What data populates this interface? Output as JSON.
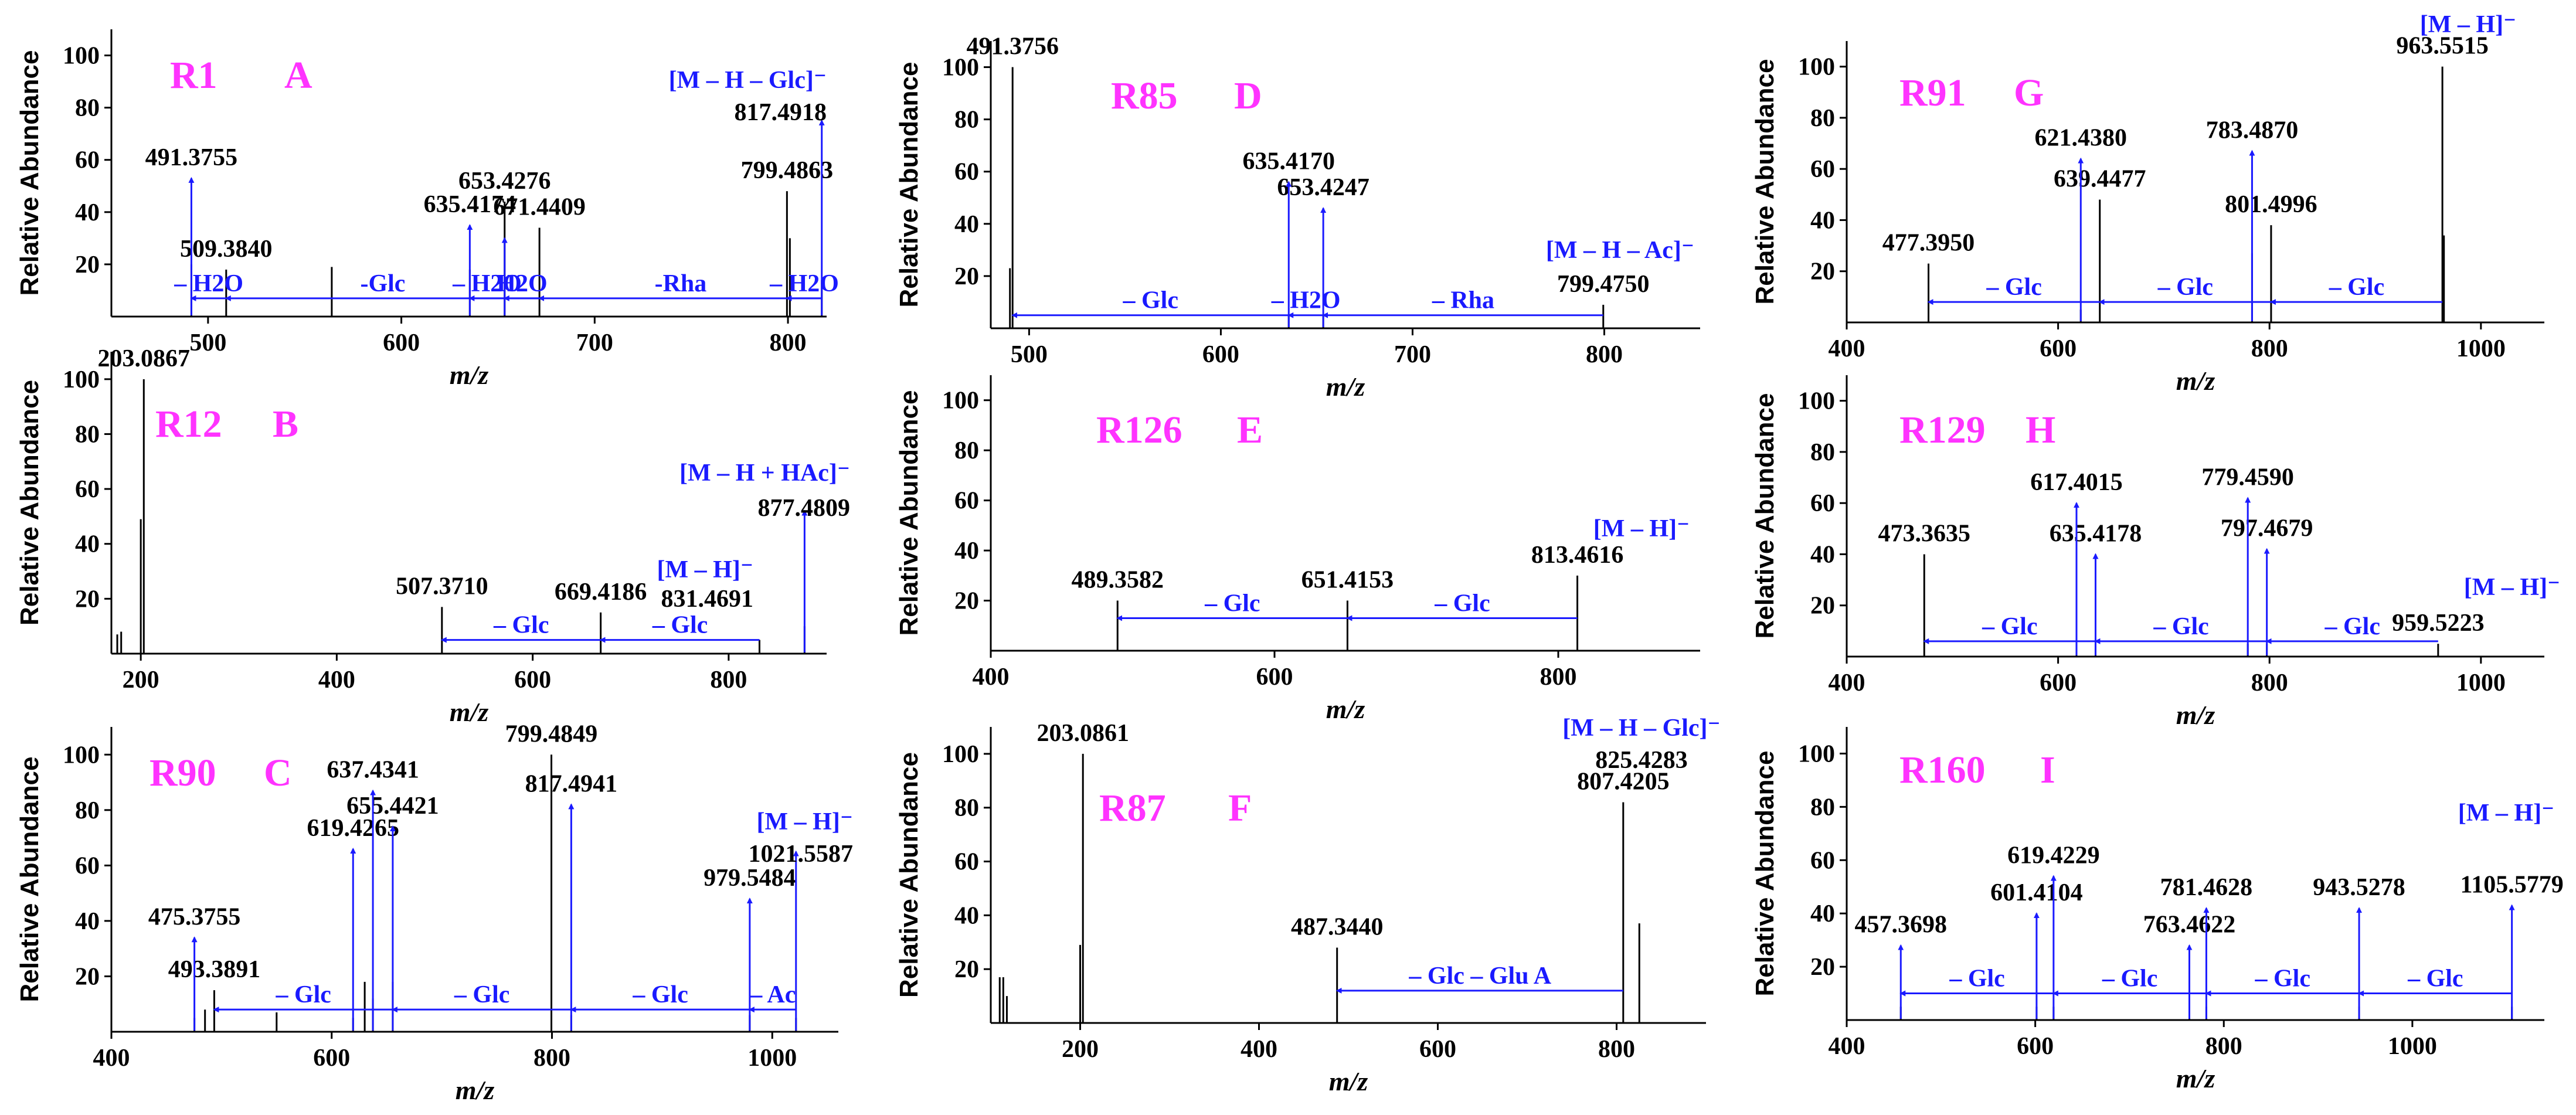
{
  "colors": {
    "peak": "#000000",
    "annotation": "#1a1aff",
    "panel_id": "#ff33ff",
    "axis": "#000000"
  },
  "chart_data": [
    {
      "panel": "A",
      "compound": "R1",
      "type": "bar",
      "xlabel": "m/z",
      "ylabel": "Relative Abundance",
      "xlim": [
        450,
        820
      ],
      "ylim": [
        0,
        110
      ],
      "xticks": [
        500,
        600,
        700,
        800
      ],
      "yticks": [
        20,
        40,
        60,
        80,
        100
      ],
      "peaks": [
        {
          "mz": 491.3755,
          "rel": 20,
          "label": "491.3755"
        },
        {
          "mz": 509.384,
          "rel": 18,
          "label": "509.3840"
        },
        {
          "mz": 564,
          "rel": 19
        },
        {
          "mz": 635.4174,
          "rel": 18,
          "label": "635.4174"
        },
        {
          "mz": 653.4276,
          "rel": 44,
          "label": "653.4276"
        },
        {
          "mz": 671.4409,
          "rel": 34,
          "label": "671.4409"
        },
        {
          "mz": 799.4863,
          "rel": 48,
          "label": "799.4863"
        },
        {
          "mz": 801,
          "rel": 30
        },
        {
          "mz": 817.4918,
          "rel": 14
        }
      ],
      "arrows": [
        {
          "mz": 491.3755,
          "to": 53
        },
        {
          "mz": 635.4174,
          "to": 35
        },
        {
          "mz": 653.4276,
          "to": 30
        },
        {
          "mz": 817.4918,
          "to": 75
        }
      ],
      "losses": [
        {
          "from": 817.4918,
          "to": 671.4409,
          "label": "-Rha"
        },
        {
          "from": 671.4409,
          "to": 509.384,
          "label": "-Glc"
        },
        {
          "from": 671.4409,
          "to": 653.4276,
          "label": "H2O"
        },
        {
          "from": 653.4276,
          "to": 635.4174,
          "label": "– H2O"
        },
        {
          "from": 509.384,
          "to": 491.3755,
          "label": "– H2O"
        },
        {
          "from": 817.4918,
          "to": 799.4863,
          "label": "– H2O"
        }
      ],
      "text_annotations": [
        {
          "text": "[M – H – Glc]⁻",
          "color": "blue"
        },
        {
          "text": "817.4918",
          "color": "black"
        }
      ]
    },
    {
      "panel": "B",
      "compound": "R12",
      "type": "bar",
      "xlabel": "m/z",
      "ylabel": "Relative Abundance",
      "xlim": [
        170,
        900
      ],
      "ylim": [
        0,
        110
      ],
      "xticks": [
        200,
        400,
        600,
        800
      ],
      "yticks": [
        20,
        40,
        60,
        80,
        100
      ],
      "peaks": [
        {
          "mz": 176,
          "rel": 7
        },
        {
          "mz": 180,
          "rel": 8
        },
        {
          "mz": 200,
          "rel": 49
        },
        {
          "mz": 203.0867,
          "rel": 100,
          "label": "203.0867"
        },
        {
          "mz": 507.371,
          "rel": 17,
          "label": "507.3710"
        },
        {
          "mz": 669.4186,
          "rel": 15,
          "label": "669.4186"
        },
        {
          "mz": 831.4691,
          "rel": 5
        },
        {
          "mz": 877.4809,
          "rel": 10
        }
      ],
      "arrows": [
        {
          "mz": 877.4809,
          "to": 52
        }
      ],
      "losses": [
        {
          "from": 831.4691,
          "to": 669.4186,
          "label": "– Glc"
        },
        {
          "from": 669.4186,
          "to": 507.371,
          "label": "– Glc"
        }
      ],
      "text_annotations": [
        {
          "text": "[M – H + HAc]⁻",
          "color": "blue"
        },
        {
          "text": "877.4809",
          "color": "black"
        },
        {
          "text": "[M – H]⁻",
          "color": "blue"
        },
        {
          "text": "831.4691",
          "color": "black"
        }
      ]
    },
    {
      "panel": "C",
      "compound": "R90",
      "type": "bar",
      "xlabel": "m/z",
      "ylabel": "Relative Abundance",
      "xlim": [
        400,
        1060
      ],
      "ylim": [
        0,
        110
      ],
      "xticks": [
        400,
        600,
        800,
        1000
      ],
      "yticks": [
        20,
        40,
        60,
        80,
        100
      ],
      "peaks": [
        {
          "mz": 475.3755,
          "rel": 5,
          "label": "475.3755"
        },
        {
          "mz": 485,
          "rel": 8
        },
        {
          "mz": 493.3891,
          "rel": 15,
          "label": "493.3891"
        },
        {
          "mz": 550,
          "rel": 7
        },
        {
          "mz": 619.4265,
          "rel": 5,
          "label": "619.4265"
        },
        {
          "mz": 630,
          "rel": 18
        },
        {
          "mz": 637.4341,
          "rel": 12,
          "label": "637.4341"
        },
        {
          "mz": 655.4421,
          "rel": 18,
          "label": "655.4421"
        },
        {
          "mz": 799.4849,
          "rel": 100,
          "label": "799.4849"
        },
        {
          "mz": 817.4941,
          "rel": 6,
          "label": "817.4941"
        },
        {
          "mz": 979.5484,
          "rel": 6,
          "label": "979.5484"
        },
        {
          "mz": 1021.5587,
          "rel": 5
        }
      ],
      "arrows": [
        {
          "mz": 475.3755,
          "to": 34
        },
        {
          "mz": 619.4265,
          "to": 66
        },
        {
          "mz": 637.4341,
          "to": 87
        },
        {
          "mz": 655.4421,
          "to": 74
        },
        {
          "mz": 817.4941,
          "to": 82
        },
        {
          "mz": 979.5484,
          "to": 48
        },
        {
          "mz": 1021.5587,
          "to": 65
        }
      ],
      "losses": [
        {
          "from": 1021.5587,
          "to": 979.5484,
          "label": "– Ac"
        },
        {
          "from": 979.5484,
          "to": 817.4941,
          "label": "– Glc"
        },
        {
          "from": 817.4941,
          "to": 655.4421,
          "label": "– Glc"
        },
        {
          "from": 655.4421,
          "to": 493.3891,
          "label": "– Glc"
        }
      ],
      "text_annotations": [
        {
          "text": "[M – H]⁻",
          "color": "blue"
        },
        {
          "text": "1021.5587",
          "color": "black"
        }
      ]
    },
    {
      "panel": "D",
      "compound": "R85",
      "type": "bar",
      "xlabel": "m/z",
      "ylabel": "Relative Abundance",
      "xlim": [
        480,
        850
      ],
      "ylim": [
        0,
        110
      ],
      "xticks": [
        500,
        600,
        700,
        800
      ],
      "yticks": [
        20,
        40,
        60,
        80,
        100
      ],
      "peaks": [
        {
          "mz": 491.3756,
          "rel": 100,
          "label": "491.3756"
        },
        {
          "mz": 490,
          "rel": 23
        },
        {
          "mz": 635.417,
          "rel": 5,
          "label": "635.4170"
        },
        {
          "mz": 653.4247,
          "rel": 5,
          "label": "653.4247"
        },
        {
          "mz": 799.475,
          "rel": 9,
          "label": "799.4750"
        }
      ],
      "arrows": [
        {
          "mz": 635.417,
          "to": 56
        },
        {
          "mz": 653.4247,
          "to": 46
        }
      ],
      "losses": [
        {
          "from": 799.475,
          "to": 653.4247,
          "label": "– Rha"
        },
        {
          "from": 653.4247,
          "to": 635.417,
          "label": "– H2O"
        },
        {
          "from": 635.417,
          "to": 491.3756,
          "label": "– Glc"
        }
      ],
      "text_annotations": [
        {
          "text": "[M – H – Ac]⁻",
          "color": "blue"
        }
      ]
    },
    {
      "panel": "E",
      "compound": "R126",
      "type": "bar",
      "xlabel": "m/z",
      "ylabel": "Relative Abundance",
      "xlim": [
        400,
        900
      ],
      "ylim": [
        0,
        110
      ],
      "xticks": [
        400,
        600,
        800
      ],
      "yticks": [
        20,
        40,
        60,
        80,
        100
      ],
      "peaks": [
        {
          "mz": 489.3582,
          "rel": 20,
          "label": "489.3582"
        },
        {
          "mz": 651.4153,
          "rel": 20,
          "label": "651.4153"
        },
        {
          "mz": 813.4616,
          "rel": 30,
          "label": "813.4616"
        }
      ],
      "arrows": [],
      "losses": [
        {
          "from": 813.4616,
          "to": 651.4153,
          "label": "– Glc"
        },
        {
          "from": 651.4153,
          "to": 489.3582,
          "label": "– Glc"
        }
      ],
      "text_annotations": [
        {
          "text": "[M – H]⁻",
          "color": "blue"
        }
      ]
    },
    {
      "panel": "F",
      "compound": "R87",
      "type": "bar",
      "xlabel": "m/z",
      "ylabel": "Relative Abundance",
      "xlim": [
        100,
        900
      ],
      "ylim": [
        0,
        110
      ],
      "xticks": [
        200,
        400,
        600,
        800
      ],
      "yticks": [
        20,
        40,
        60,
        80,
        100
      ],
      "peaks": [
        {
          "mz": 110,
          "rel": 17
        },
        {
          "mz": 114,
          "rel": 17
        },
        {
          "mz": 118,
          "rel": 10
        },
        {
          "mz": 200,
          "rel": 29
        },
        {
          "mz": 203.0861,
          "rel": 100,
          "label": "203.0861"
        },
        {
          "mz": 487.344,
          "rel": 28,
          "label": "487.3440"
        },
        {
          "mz": 807.4205,
          "rel": 82,
          "label": "807.4205"
        },
        {
          "mz": 825.4283,
          "rel": 37
        }
      ],
      "arrows": [],
      "losses": [
        {
          "from": 807.4205,
          "to": 487.344,
          "label": "– Glc – Glu A"
        }
      ],
      "text_annotations": [
        {
          "text": "[M – H – Glc]⁻",
          "color": "blue"
        },
        {
          "text": "825.4283",
          "color": "black"
        }
      ]
    },
    {
      "panel": "G",
      "compound": "R91",
      "type": "bar",
      "xlabel": "m/z",
      "ylabel": "Relative Abundance",
      "xlim": [
        400,
        1060
      ],
      "ylim": [
        0,
        110
      ],
      "xticks": [
        400,
        600,
        800,
        1000
      ],
      "yticks": [
        20,
        40,
        60,
        80,
        100
      ],
      "peaks": [
        {
          "mz": 477.395,
          "rel": 23,
          "label": "477.3950"
        },
        {
          "mz": 621.438,
          "rel": 5,
          "label": "621.4380"
        },
        {
          "mz": 639.4477,
          "rel": 48,
          "label": "639.4477"
        },
        {
          "mz": 783.487,
          "rel": 27,
          "label": "783.4870"
        },
        {
          "mz": 801.4996,
          "rel": 38,
          "label": "801.4996"
        },
        {
          "mz": 963.5515,
          "rel": 100,
          "label": "963.5515"
        },
        {
          "mz": 965,
          "rel": 34
        }
      ],
      "arrows": [
        {
          "mz": 621.438,
          "to": 64
        },
        {
          "mz": 783.487,
          "to": 67
        }
      ],
      "losses": [
        {
          "from": 963.5515,
          "to": 801.4996,
          "label": "– Glc"
        },
        {
          "from": 801.4996,
          "to": 639.4477,
          "label": "– Glc"
        },
        {
          "from": 639.4477,
          "to": 477.395,
          "label": "– Glc"
        }
      ],
      "text_annotations": [
        {
          "text": "[M – H]⁻",
          "color": "blue"
        }
      ]
    },
    {
      "panel": "H",
      "compound": "R129",
      "type": "bar",
      "xlabel": "m/z",
      "ylabel": "Relative Abundance",
      "xlim": [
        400,
        1060
      ],
      "ylim": [
        0,
        110
      ],
      "xticks": [
        400,
        600,
        800,
        1000
      ],
      "yticks": [
        20,
        40,
        60,
        80,
        100
      ],
      "peaks": [
        {
          "mz": 473.3635,
          "rel": 40,
          "label": "473.3635"
        },
        {
          "mz": 617.4015,
          "rel": 5,
          "label": "617.4015"
        },
        {
          "mz": 635.4178,
          "rel": 5,
          "label": "635.4178"
        },
        {
          "mz": 779.459,
          "rel": 5,
          "label": "779.4590"
        },
        {
          "mz": 797.4679,
          "rel": 5,
          "label": "797.4679"
        },
        {
          "mz": 959.5223,
          "rel": 5,
          "label": "959.5223"
        }
      ],
      "arrows": [
        {
          "mz": 617.4015,
          "to": 60
        },
        {
          "mz": 635.4178,
          "to": 40
        },
        {
          "mz": 779.459,
          "to": 62
        },
        {
          "mz": 797.4679,
          "to": 42
        }
      ],
      "losses": [
        {
          "from": 959.5223,
          "to": 797.4679,
          "label": "– Glc"
        },
        {
          "from": 797.4679,
          "to": 635.4178,
          "label": "– Glc"
        },
        {
          "from": 635.4178,
          "to": 473.3635,
          "label": "– Glc"
        }
      ],
      "text_annotations": [
        {
          "text": "[M – H]⁻",
          "color": "blue"
        }
      ]
    },
    {
      "panel": "I",
      "compound": "R160",
      "type": "bar",
      "xlabel": "m/z",
      "ylabel": "Relative Abundance",
      "xlim": [
        400,
        1140
      ],
      "ylim": [
        0,
        110
      ],
      "xticks": [
        400,
        600,
        800,
        1000
      ],
      "yticks": [
        20,
        40,
        60,
        80,
        100
      ],
      "peaks": [
        {
          "mz": 457.3698,
          "rel": 5,
          "label": "457.3698"
        },
        {
          "mz": 601.4104,
          "rel": 5,
          "label": "601.4104"
        },
        {
          "mz": 619.4229,
          "rel": 5,
          "label": "619.4229"
        },
        {
          "mz": 763.4622,
          "rel": 5,
          "label": "763.4622"
        },
        {
          "mz": 781.4628,
          "rel": 5,
          "label": "781.4628"
        },
        {
          "mz": 943.5278,
          "rel": 5,
          "label": "943.5278"
        },
        {
          "mz": 1105.5779,
          "rel": 5,
          "label": "1105.5779"
        }
      ],
      "arrows": [
        {
          "mz": 457.3698,
          "to": 28
        },
        {
          "mz": 601.4104,
          "to": 40
        },
        {
          "mz": 619.4229,
          "to": 54
        },
        {
          "mz": 763.4622,
          "to": 28
        },
        {
          "mz": 781.4628,
          "to": 42
        },
        {
          "mz": 943.5278,
          "to": 42
        },
        {
          "mz": 1105.5779,
          "to": 43
        }
      ],
      "losses": [
        {
          "from": 1105.5779,
          "to": 943.5278,
          "label": "– Glc"
        },
        {
          "from": 943.5278,
          "to": 781.4628,
          "label": "– Glc"
        },
        {
          "from": 781.4628,
          "to": 619.4229,
          "label": "– Glc"
        },
        {
          "from": 619.4229,
          "to": 457.3698,
          "label": "– Glc"
        }
      ],
      "text_annotations": [
        {
          "text": "[M – H]⁻",
          "color": "blue"
        }
      ]
    }
  ]
}
